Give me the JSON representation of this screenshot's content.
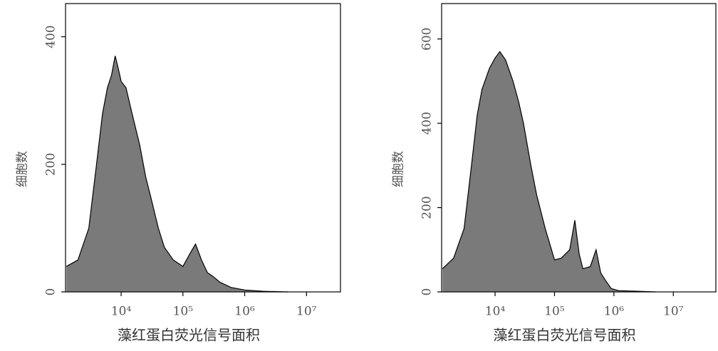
{
  "chart_data": [
    {
      "type": "area",
      "color": "#7a7a7a",
      "log_x": true,
      "xlabel": "藻红蛋白荧光信号面积",
      "ylabel": "细胞数",
      "xlim": [
        1259,
        35500000
      ],
      "ylim": [
        0,
        452
      ],
      "xticks": [
        {
          "value": 10000,
          "label": "10⁴"
        },
        {
          "value": 100000,
          "label": "10⁵"
        },
        {
          "value": 1000000,
          "label": "10⁶"
        },
        {
          "value": 10000000,
          "label": "10⁷"
        }
      ],
      "yticks": [
        0,
        200,
        400
      ],
      "x": [
        1300,
        2000,
        3000,
        4000,
        5000,
        6000,
        7000,
        8000,
        9000,
        10000,
        12000,
        15000,
        20000,
        25000,
        30000,
        40000,
        50000,
        70000,
        100000,
        130000,
        160000,
        200000,
        250000,
        300000,
        400000,
        600000,
        1000000,
        2000000,
        5000000
      ],
      "values": [
        40,
        50,
        100,
        200,
        280,
        320,
        340,
        370,
        350,
        330,
        320,
        280,
        230,
        180,
        150,
        100,
        70,
        50,
        40,
        60,
        75,
        50,
        30,
        25,
        15,
        7,
        3,
        1,
        0
      ]
    },
    {
      "type": "area",
      "color": "#7a7a7a",
      "log_x": true,
      "xlabel": "藻红蛋白荧光信号面积",
      "ylabel": "细胞数",
      "xlim": [
        1259,
        52000000
      ],
      "ylim": [
        0,
        684
      ],
      "xticks": [
        {
          "value": 10000,
          "label": "10⁴"
        },
        {
          "value": 100000,
          "label": "10⁵"
        },
        {
          "value": 1000000,
          "label": "10⁶"
        },
        {
          "value": 10000000,
          "label": "10⁷"
        }
      ],
      "yticks": [
        0,
        200,
        400,
        600
      ],
      "x": [
        1300,
        2000,
        3000,
        4000,
        5000,
        6000,
        8000,
        10000,
        12000,
        15000,
        20000,
        25000,
        30000,
        40000,
        50000,
        70000,
        100000,
        130000,
        180000,
        220000,
        260000,
        300000,
        400000,
        500000,
        600000,
        700000,
        900000,
        1200000,
        2000000,
        5000000
      ],
      "values": [
        55,
        80,
        150,
        300,
        420,
        480,
        530,
        555,
        570,
        550,
        500,
        450,
        400,
        300,
        230,
        150,
        76,
        80,
        100,
        170,
        90,
        55,
        60,
        100,
        45,
        30,
        8,
        3,
        2,
        0
      ]
    }
  ]
}
